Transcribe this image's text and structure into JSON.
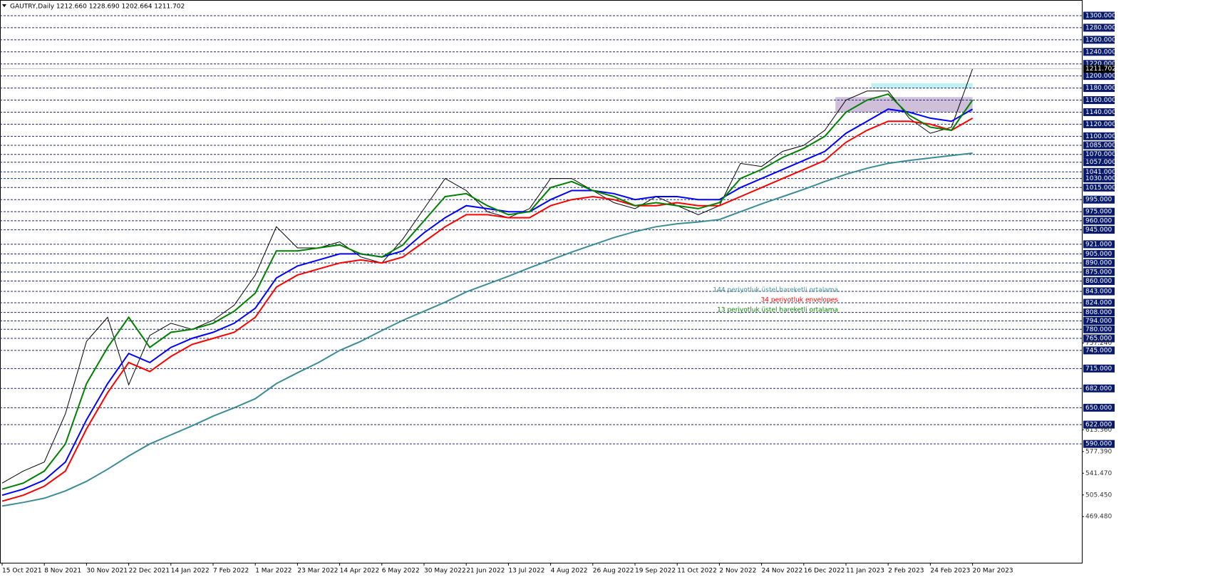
{
  "chart_data": {
    "type": "line",
    "title": "GAUTRY,Daily  1212.660 1228.690 1202.664 1211.702",
    "categories": [
      "15 Oct 2021",
      null,
      "8 Nov 2021",
      null,
      "30 Nov 2021",
      null,
      "22 Dec 2021",
      null,
      "14 Jan 2022",
      null,
      "7 Feb 2022",
      null,
      "1 Mar 2022",
      null,
      "23 Mar 2022",
      null,
      "14 Apr 2022",
      null,
      "6 May 2022",
      null,
      "30 May 2022",
      null,
      "21 Jun 2022",
      null,
      "13 Jul 2022",
      null,
      "4 Aug 2022",
      null,
      "26 Aug 2022",
      null,
      "19 Sep 2022",
      null,
      "11 Oct 2022",
      null,
      "2 Nov 2022",
      null,
      "24 Nov 2022",
      null,
      "16 Dec 2022",
      null,
      "11 Jan 2023",
      null,
      "2 Feb 2023",
      null,
      "24 Feb 2023",
      null,
      "20 Mar 2023"
    ],
    "series": [
      {
        "color": "#000000",
        "values": [
          525,
          545,
          560,
          640,
          760,
          800,
          688,
          770,
          790,
          780,
          795,
          820,
          870,
          950,
          915,
          915,
          925,
          900,
          890,
          930,
          980,
          1030,
          1010,
          975,
          965,
          980,
          1030,
          1030,
          1010,
          990,
          980,
          1000,
          985,
          970,
          985,
          1055,
          1050,
          1075,
          1085,
          1110,
          1160,
          1175,
          1175,
          1130,
          1105,
          1115,
          1211.702
        ]
      },
      {
        "name": "144 periyotluk üstel hareketli ortalama",
        "color": "#3c8c96",
        "values": [
          487,
          493,
          500,
          512,
          528,
          548,
          570,
          590,
          605,
          620,
          636,
          650,
          665,
          690,
          708,
          725,
          745,
          760,
          778,
          795,
          810,
          825,
          842,
          855,
          868,
          882,
          895,
          908,
          920,
          932,
          942,
          950,
          955,
          958,
          962,
          975,
          988,
          1000,
          1012,
          1025,
          1037,
          1047,
          1055,
          1060,
          1064,
          1068,
          1072
        ]
      },
      {
        "color": "#0000ff",
        "values": [
          505,
          515,
          530,
          560,
          630,
          690,
          740,
          725,
          750,
          765,
          775,
          790,
          815,
          865,
          885,
          895,
          905,
          905,
          900,
          910,
          940,
          965,
          985,
          980,
          975,
          975,
          995,
          1010,
          1010,
          1005,
          995,
          1000,
          1000,
          995,
          995,
          1015,
          1030,
          1045,
          1060,
          1075,
          1105,
          1125,
          1145,
          1140,
          1130,
          1125,
          1145
        ]
      },
      {
        "name": "34 periyotluk envelopes",
        "color": "#ff0000",
        "values": [
          495,
          505,
          520,
          545,
          615,
          675,
          725,
          710,
          735,
          755,
          765,
          775,
          800,
          850,
          870,
          880,
          890,
          895,
          890,
          900,
          925,
          950,
          970,
          970,
          965,
          965,
          985,
          995,
          1000,
          995,
          985,
          985,
          990,
          985,
          985,
          1000,
          1015,
          1030,
          1045,
          1060,
          1090,
          1110,
          1125,
          1125,
          1120,
          1110,
          1130
        ]
      },
      {
        "name": "13 periyotluk üstel hareketli ortalama",
        "color": "#008000",
        "values": [
          515,
          525,
          545,
          590,
          690,
          750,
          800,
          750,
          775,
          780,
          790,
          810,
          840,
          910,
          910,
          915,
          920,
          905,
          900,
          920,
          960,
          1000,
          1005,
          985,
          970,
          975,
          1015,
          1025,
          1010,
          1000,
          985,
          990,
          985,
          980,
          990,
          1030,
          1045,
          1065,
          1080,
          1100,
          1140,
          1160,
          1170,
          1135,
          1115,
          1110,
          1160
        ]
      }
    ],
    "ylim": [
      393,
      1316.5
    ],
    "levels": [
      {
        "value": 1300,
        "label": "1300.000"
      },
      {
        "value": 1280,
        "label": "1280.000"
      },
      {
        "value": 1260,
        "label": "1260.000"
      },
      {
        "value": 1240,
        "label": "1240.000"
      },
      {
        "value": 1220,
        "label": "1220.000"
      },
      {
        "value": 1200,
        "label": "1200.000"
      },
      {
        "value": 1180,
        "label": "1180.000"
      },
      {
        "value": 1160,
        "label": "1160.000"
      },
      {
        "value": 1140,
        "label": "1140.000"
      },
      {
        "value": 1120,
        "label": "1120.000"
      },
      {
        "value": 1100,
        "label": "1100.000"
      },
      {
        "value": 1085,
        "label": "1085.000"
      },
      {
        "value": 1070,
        "label": "1070.000"
      },
      {
        "value": 1057,
        "label": "1057.000"
      },
      {
        "value": 1041,
        "label": "1041.000"
      },
      {
        "value": 1030,
        "label": "1030.000"
      },
      {
        "value": 1015,
        "label": "1015.000"
      },
      {
        "value": 995,
        "label": "995.000"
      },
      {
        "value": 975,
        "label": "975.000"
      },
      {
        "value": 960,
        "label": "960.000"
      },
      {
        "value": 945,
        "label": "945.000"
      },
      {
        "value": 921,
        "label": "921.000"
      },
      {
        "value": 905,
        "label": "905.000"
      },
      {
        "value": 890,
        "label": "890.000"
      },
      {
        "value": 875,
        "label": "875.000"
      },
      {
        "value": 860,
        "label": "860.000"
      },
      {
        "value": 843,
        "label": "843.000"
      },
      {
        "value": 824,
        "label": "824.000"
      },
      {
        "value": 808,
        "label": "808.000"
      },
      {
        "value": 794,
        "label": "794.000"
      },
      {
        "value": 780,
        "label": "780.000"
      },
      {
        "value": 765,
        "label": "765.000"
      },
      {
        "value": 745,
        "label": "745.000"
      },
      {
        "value": 715,
        "label": "715.000"
      },
      {
        "value": 682,
        "label": "682.000"
      },
      {
        "value": 650,
        "label": "650.000"
      },
      {
        "value": 622,
        "label": "622.000"
      },
      {
        "value": 590,
        "label": "590.000"
      }
    ],
    "yticks": [
      {
        "value": 757.24,
        "label": "757.240"
      },
      {
        "value": 613.36,
        "label": "613.360"
      },
      {
        "value": 577.39,
        "label": "577.390"
      },
      {
        "value": 541.47,
        "label": "541.470"
      },
      {
        "value": 505.45,
        "label": "505.450"
      },
      {
        "value": 469.48,
        "label": "469.480"
      }
    ],
    "current_price": {
      "value": 1211.702,
      "label": "1211.702"
    },
    "zones": [
      {
        "y": [
          1140,
          1165
        ],
        "x": [
          39.5,
          46
        ],
        "color": "#c8b4d2"
      },
      {
        "y": [
          1180,
          1188
        ],
        "x": [
          41.2,
          46
        ],
        "color": "#b4eef0"
      },
      {
        "y": [
          1260,
          1261
        ],
        "x": [
          41,
          47.7
        ],
        "color": "#c0c0c0"
      }
    ]
  }
}
